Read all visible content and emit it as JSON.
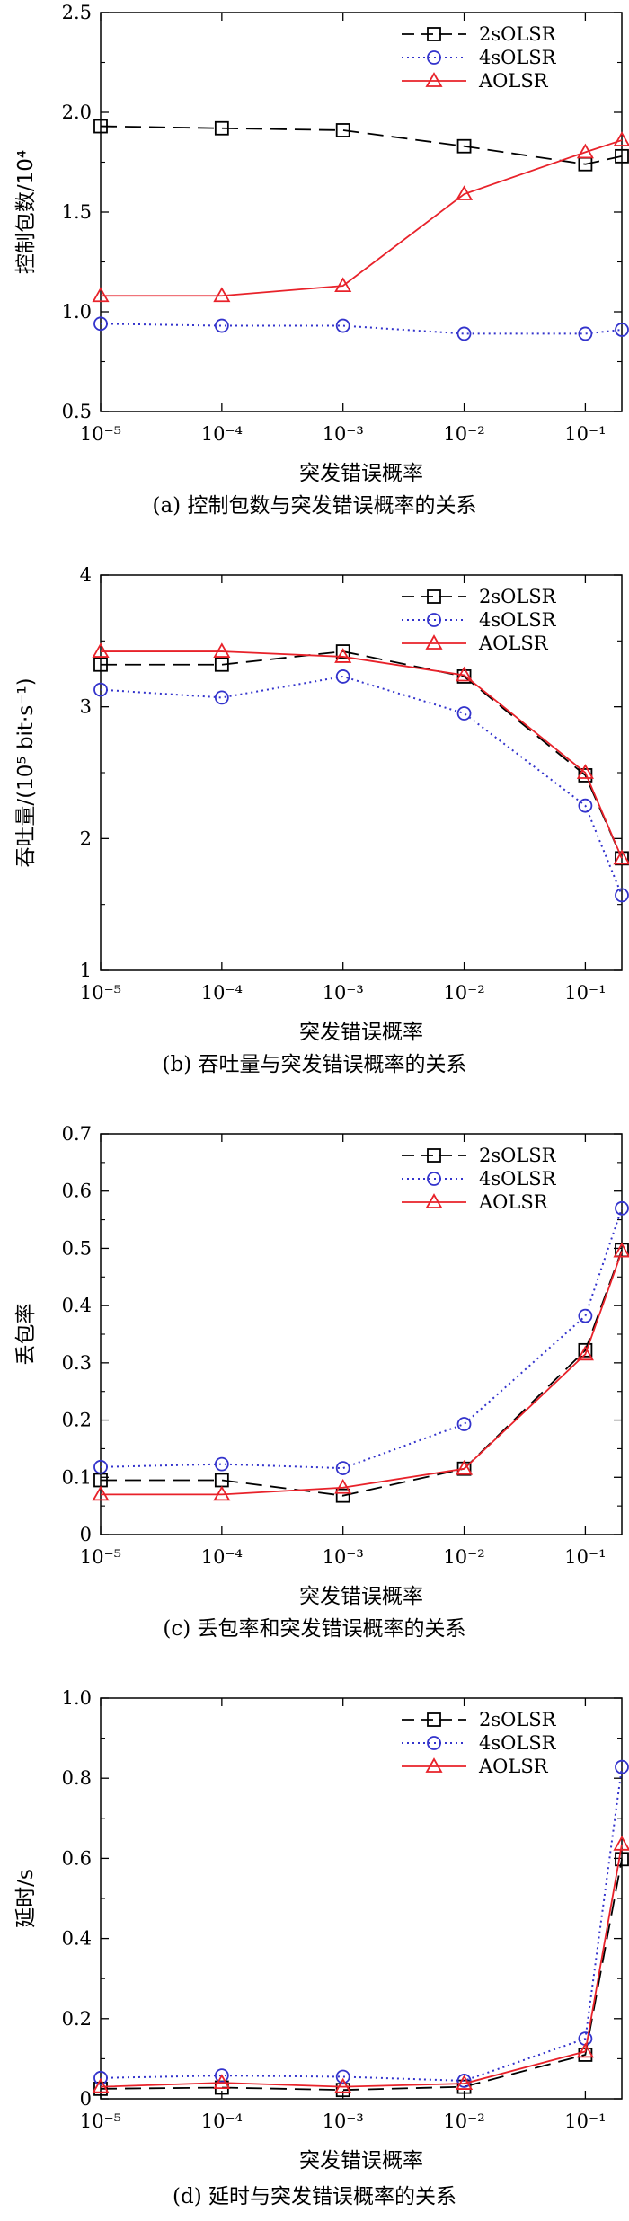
{
  "chart_data": [
    {
      "type": "line",
      "caption": "(a) 控制包数与突发错误概率的关系",
      "xlabel": "突发错误概率",
      "ylabel": "控制包数/10⁴",
      "xscale": "log",
      "x": [
        1e-05,
        0.0001,
        0.001,
        0.01,
        0.1,
        0.2
      ],
      "xlim": [
        1e-05,
        0.2
      ],
      "xticks": [
        "10⁻⁵",
        "10⁻⁴",
        "10⁻³",
        "10⁻²",
        "10⁻¹"
      ],
      "ylim": [
        0.5,
        2.5
      ],
      "yticks": [
        0.5,
        1.0,
        1.5,
        2.0,
        2.5
      ],
      "ytick_labels": [
        "0.5",
        "1.0",
        "1.5",
        "2.0",
        "2.5"
      ],
      "legend_position": "top-right",
      "series": [
        {
          "name": "2sOLSR",
          "values": [
            1.93,
            1.92,
            1.91,
            1.83,
            1.74,
            1.78
          ],
          "color": "#000000",
          "dash": "18,9",
          "marker": "square"
        },
        {
          "name": "4sOLSR",
          "values": [
            0.94,
            0.93,
            0.93,
            0.89,
            0.89,
            0.91
          ],
          "color": "#3333cc",
          "dash": "2,4",
          "marker": "circle"
        },
        {
          "name": "AOLSR",
          "values": [
            1.08,
            1.08,
            1.13,
            1.59,
            1.8,
            1.86
          ],
          "color": "#e8222a",
          "dash": "",
          "marker": "triangle"
        }
      ]
    },
    {
      "type": "line",
      "caption": "(b) 吞吐量与突发错误概率的关系",
      "xlabel": "突发错误概率",
      "ylabel": "吞吐量/(10⁵ bit·s⁻¹)",
      "xscale": "log",
      "x": [
        1e-05,
        0.0001,
        0.001,
        0.01,
        0.1,
        0.2
      ],
      "xlim": [
        1e-05,
        0.2
      ],
      "xticks": [
        "10⁻⁵",
        "10⁻⁴",
        "10⁻³",
        "10⁻²",
        "10⁻¹"
      ],
      "ylim": [
        1,
        4
      ],
      "yticks": [
        1,
        2,
        3,
        4
      ],
      "ytick_labels": [
        "1",
        "2",
        "3",
        "4"
      ],
      "legend_position": "top-right",
      "series": [
        {
          "name": "2sOLSR",
          "values": [
            3.32,
            3.32,
            3.42,
            3.23,
            2.48,
            1.85
          ],
          "color": "#000000",
          "dash": "18,9",
          "marker": "square"
        },
        {
          "name": "4sOLSR",
          "values": [
            3.13,
            3.07,
            3.23,
            2.95,
            2.25,
            1.57
          ],
          "color": "#3333cc",
          "dash": "2,4",
          "marker": "circle"
        },
        {
          "name": "AOLSR",
          "values": [
            3.42,
            3.42,
            3.38,
            3.24,
            2.5,
            1.85
          ],
          "color": "#e8222a",
          "dash": "",
          "marker": "triangle"
        }
      ]
    },
    {
      "type": "line",
      "caption": "(c) 丢包率和突发错误概率的关系",
      "xlabel": "突发错误概率",
      "ylabel": "丢包率",
      "xscale": "log",
      "x": [
        1e-05,
        0.0001,
        0.001,
        0.01,
        0.1,
        0.2
      ],
      "xlim": [
        1e-05,
        0.2
      ],
      "xticks": [
        "10⁻⁵",
        "10⁻⁴",
        "10⁻³",
        "10⁻²",
        "10⁻¹"
      ],
      "ylim": [
        0,
        0.7
      ],
      "yticks": [
        0,
        0.1,
        0.2,
        0.3,
        0.4,
        0.5,
        0.6,
        0.7
      ],
      "ytick_labels": [
        "0",
        "0.1",
        "0.2",
        "0.3",
        "0.4",
        "0.5",
        "0.6",
        "0.7"
      ],
      "legend_position": "top-right",
      "series": [
        {
          "name": "2sOLSR",
          "values": [
            0.095,
            0.095,
            0.068,
            0.115,
            0.322,
            0.497
          ],
          "color": "#000000",
          "dash": "18,9",
          "marker": "square"
        },
        {
          "name": "4sOLSR",
          "values": [
            0.118,
            0.123,
            0.116,
            0.193,
            0.382,
            0.57
          ],
          "color": "#3333cc",
          "dash": "2,4",
          "marker": "circle"
        },
        {
          "name": "AOLSR",
          "values": [
            0.07,
            0.07,
            0.082,
            0.115,
            0.315,
            0.495
          ],
          "color": "#e8222a",
          "dash": "",
          "marker": "triangle"
        }
      ]
    },
    {
      "type": "line",
      "caption": "(d) 延时与突发错误概率的关系",
      "xlabel": "突发错误概率",
      "ylabel": "延时/s",
      "xscale": "log",
      "x": [
        1e-05,
        0.0001,
        0.001,
        0.01,
        0.1,
        0.2
      ],
      "xlim": [
        1e-05,
        0.2
      ],
      "xticks": [
        "10⁻⁵",
        "10⁻⁴",
        "10⁻³",
        "10⁻²",
        "10⁻¹"
      ],
      "ylim": [
        0,
        1.0
      ],
      "yticks": [
        0,
        0.2,
        0.4,
        0.6,
        0.8,
        1.0
      ],
      "ytick_labels": [
        "0",
        "0.2",
        "0.4",
        "0.6",
        "0.8",
        "1.0"
      ],
      "legend_position": "top-right",
      "series": [
        {
          "name": "2sOLSR",
          "values": [
            0.025,
            0.028,
            0.022,
            0.03,
            0.11,
            0.598
          ],
          "color": "#000000",
          "dash": "18,9",
          "marker": "square"
        },
        {
          "name": "4sOLSR",
          "values": [
            0.052,
            0.058,
            0.055,
            0.045,
            0.15,
            0.828
          ],
          "color": "#3333cc",
          "dash": "2,4",
          "marker": "circle"
        },
        {
          "name": "AOLSR",
          "values": [
            0.03,
            0.04,
            0.03,
            0.038,
            0.118,
            0.635
          ],
          "color": "#e8222a",
          "dash": "",
          "marker": "triangle"
        }
      ]
    }
  ]
}
